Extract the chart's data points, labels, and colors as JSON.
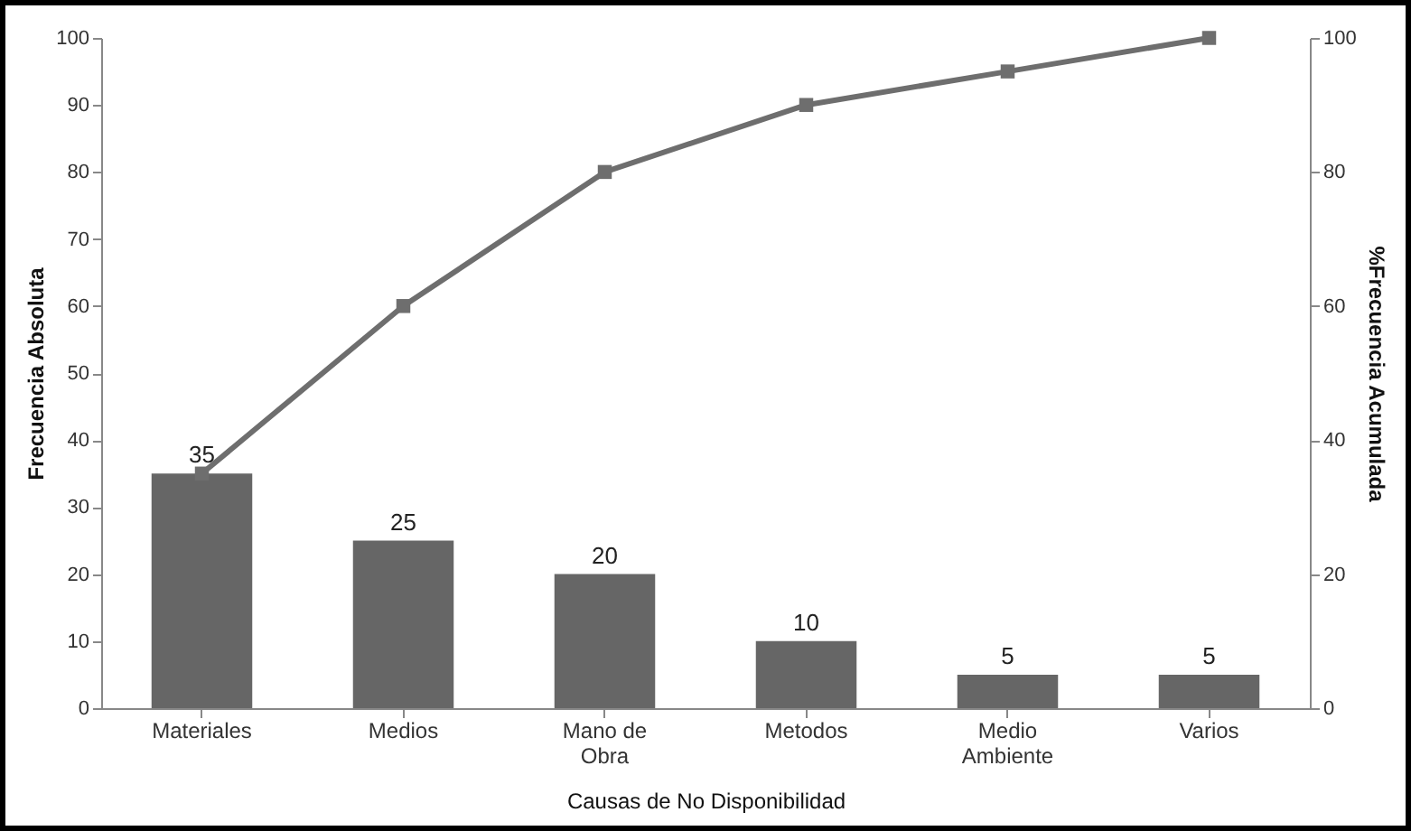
{
  "chart_data": {
    "type": "bar",
    "xlabel": "Causas de No Disponibilidad",
    "ylabel": "Frecuencia Absoluta",
    "y2label": "%Frecuencia Acumulada",
    "categories": [
      "Materiales",
      "Medios",
      "Mano de Obra",
      "Metodos",
      "Medio Ambiente",
      "Varios"
    ],
    "series": [
      {
        "color": "#666666",
        "values": [
          35,
          25,
          20,
          10,
          5,
          5
        ],
        "value_labels": [
          "35",
          "25",
          "20",
          "10",
          "5",
          "5"
        ]
      },
      {
        "type": "line",
        "axis": "y2",
        "color": "#6e6e6e",
        "marker": "square",
        "values": [
          35,
          60,
          80,
          90,
          95,
          100
        ]
      }
    ],
    "ylim": [
      0,
      100
    ],
    "yticks": [
      0,
      10,
      20,
      30,
      40,
      50,
      60,
      70,
      80,
      90,
      100
    ],
    "y2lim": [
      0,
      100
    ],
    "y2ticks": [
      0,
      20,
      40,
      60,
      80,
      100
    ],
    "grid": false
  }
}
